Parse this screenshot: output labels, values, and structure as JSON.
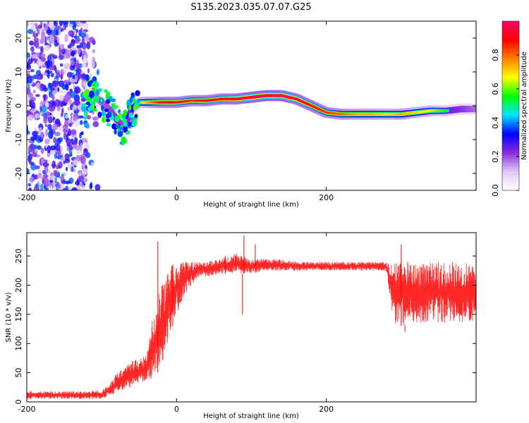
{
  "title": "S135.2023.035.07.07.G25",
  "chart_data": [
    {
      "type": "heatmap",
      "xlabel": "Height of straight line (km)",
      "ylabel": "Frequency (Hz)",
      "xlim": [
        -200,
        400
      ],
      "ylim": [
        -25,
        25
      ],
      "x_ticks": [
        -200,
        0,
        200
      ],
      "y_ticks": [
        -20,
        -10,
        0,
        10,
        20
      ],
      "grid": false,
      "colorbar": {
        "label": "Normalized spectral amplitude",
        "range": [
          0,
          1
        ],
        "ticks": [
          0.0,
          0.2,
          0.4,
          0.6,
          0.8
        ],
        "colormap": [
          "#ffffff",
          "#e0c8f4",
          "#8a2be2",
          "#0000ff",
          "#00e5ff",
          "#00ff00",
          "#ffff00",
          "#ff8000",
          "#ff0000",
          "#ff0066"
        ]
      },
      "ridge": {
        "x": [
          -120,
          -110,
          -100,
          -90,
          -80,
          -70,
          -60,
          -50,
          -40,
          -20,
          0,
          20,
          40,
          60,
          80,
          100,
          120,
          140,
          160,
          180,
          200,
          220,
          240,
          260,
          280,
          300,
          320,
          340,
          360,
          380,
          400
        ],
        "y": [
          4,
          3,
          1,
          -1,
          -4,
          -7,
          -1,
          1,
          1,
          1,
          1,
          1.5,
          1.5,
          2,
          2,
          2.5,
          3,
          3,
          2,
          0,
          -2,
          -2.5,
          -2.5,
          -2.5,
          -2.5,
          -2.5,
          -2,
          -1.5,
          -1.5,
          -1,
          -1
        ],
        "amplitude": [
          0.3,
          0.35,
          0.4,
          0.45,
          0.5,
          0.45,
          0.55,
          0.6,
          0.75,
          0.9,
          0.9,
          0.85,
          0.9,
          0.9,
          0.95,
          1,
          1,
          1,
          0.95,
          0.9,
          0.85,
          0.8,
          0.75,
          0.75,
          0.7,
          0.75,
          0.7,
          0.65,
          0.55,
          0.5,
          0.4
        ]
      }
    },
    {
      "type": "line",
      "xlabel": "Height of straight line (km)",
      "ylabel": "SNR (10 * v/v)",
      "xlim": [
        -200,
        400
      ],
      "ylim": [
        0,
        290
      ],
      "x_ticks": [
        -200,
        0,
        200
      ],
      "y_ticks": [
        0,
        50,
        100,
        150,
        200,
        250
      ],
      "grid": false,
      "series": [
        {
          "color": "#ff0000",
          "x": [
            -205,
            -180,
            -150,
            -120,
            -100,
            -90,
            -80,
            -70,
            -60,
            -50,
            -40,
            -30,
            -20,
            -10,
            0,
            10,
            20,
            30,
            40,
            60,
            80,
            100,
            120,
            140,
            160,
            180,
            200,
            220,
            240,
            260,
            280,
            290,
            300,
            320,
            340,
            360,
            380,
            400
          ],
          "y_low": [
            5,
            5,
            5,
            5,
            5,
            10,
            15,
            20,
            25,
            30,
            35,
            40,
            60,
            110,
            150,
            180,
            200,
            215,
            215,
            220,
            220,
            220,
            225,
            225,
            225,
            225,
            225,
            225,
            225,
            225,
            225,
            135,
            130,
            135,
            135,
            135,
            135,
            135
          ],
          "y_high": [
            20,
            18,
            18,
            18,
            20,
            30,
            50,
            60,
            70,
            75,
            80,
            160,
            200,
            230,
            240,
            240,
            240,
            240,
            240,
            245,
            255,
            245,
            245,
            245,
            240,
            240,
            240,
            240,
            240,
            240,
            240,
            235,
            245,
            240,
            240,
            240,
            240,
            240
          ],
          "spikes": [
            [
              -25,
              275
            ],
            [
              -5,
              235
            ],
            [
              65,
              250
            ],
            [
              90,
              285
            ],
            [
              88,
              150
            ],
            [
              105,
              270
            ],
            [
              300,
              270
            ],
            [
              305,
              120
            ]
          ]
        }
      ]
    }
  ]
}
